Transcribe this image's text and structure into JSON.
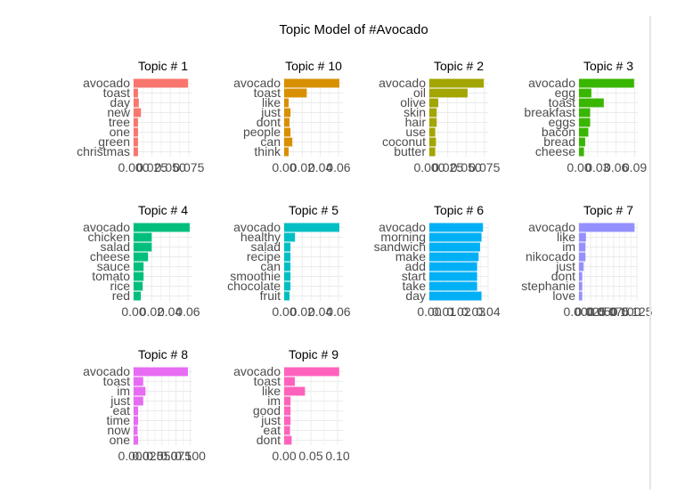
{
  "chart_data": {
    "type": "bar",
    "orientation": "horizontal",
    "title": "Topic Model of #Avocado",
    "grid": true,
    "legend": "none",
    "panels": [
      {
        "title": "Topic # 1",
        "color": "#F8766D",
        "categories": [
          "avocado",
          "toast",
          "day",
          "new",
          "tree",
          "one",
          "green",
          "christmas"
        ],
        "values": [
          0.074,
          0.006,
          0.007,
          0.01,
          0.006,
          0.006,
          0.006,
          0.006
        ],
        "xlim": [
          0,
          0.08
        ],
        "ticks": [
          0.0,
          0.025,
          0.05,
          0.075
        ],
        "tick_labels": [
          "0.000",
          "0.025",
          "0.050",
          "0.075"
        ]
      },
      {
        "title": "Topic # 10",
        "color": "#D89000",
        "categories": [
          "avocado",
          "toast",
          "like",
          "just",
          "dont",
          "people",
          "can",
          "think"
        ],
        "values": [
          0.061,
          0.025,
          0.005,
          0.007,
          0.006,
          0.007,
          0.009,
          0.005
        ],
        "xlim": [
          0,
          0.065
        ],
        "ticks": [
          0.0,
          0.02,
          0.04,
          0.06
        ],
        "tick_labels": [
          "0.00",
          "0.02",
          "0.04",
          "0.06"
        ]
      },
      {
        "title": "Topic # 2",
        "color": "#A3A500",
        "categories": [
          "avocado",
          "oil",
          "olive",
          "skin",
          "hair",
          "use",
          "coconut",
          "butter"
        ],
        "values": [
          0.074,
          0.052,
          0.012,
          0.01,
          0.01,
          0.008,
          0.009,
          0.008
        ],
        "xlim": [
          0,
          0.08
        ],
        "ticks": [
          0.0,
          0.025,
          0.05,
          0.075
        ],
        "tick_labels": [
          "0.000",
          "0.025",
          "0.050",
          "0.075"
        ]
      },
      {
        "title": "Topic # 3",
        "color": "#39B600",
        "categories": [
          "avocado",
          "egg",
          "toast",
          "breakfast",
          "eggs",
          "bacon",
          "bread",
          "cheese"
        ],
        "values": [
          0.089,
          0.02,
          0.04,
          0.018,
          0.018,
          0.015,
          0.01,
          0.008
        ],
        "xlim": [
          0,
          0.095
        ],
        "ticks": [
          0.0,
          0.03,
          0.06,
          0.09
        ],
        "tick_labels": [
          "0.00",
          "0.03",
          "0.06",
          "0.09"
        ]
      },
      {
        "title": "Topic # 4",
        "color": "#00BF7D",
        "categories": [
          "avocado",
          "chicken",
          "salad",
          "cheese",
          "sauce",
          "tomato",
          "rice",
          "red"
        ],
        "values": [
          0.062,
          0.02,
          0.02,
          0.016,
          0.011,
          0.011,
          0.01,
          0.008
        ],
        "xlim": [
          0,
          0.065
        ],
        "ticks": [
          0.0,
          0.02,
          0.04,
          0.06
        ],
        "tick_labels": [
          "0.00",
          "0.02",
          "0.04",
          "0.06"
        ]
      },
      {
        "title": "Topic # 5",
        "color": "#00BFC4",
        "categories": [
          "avocado",
          "healthy",
          "salad",
          "recipe",
          "can",
          "smoothie",
          "chocolate",
          "fruit"
        ],
        "values": [
          0.061,
          0.012,
          0.007,
          0.007,
          0.007,
          0.007,
          0.007,
          0.006
        ],
        "xlim": [
          0,
          0.065
        ],
        "ticks": [
          0.0,
          0.02,
          0.04,
          0.06
        ],
        "tick_labels": [
          "0.00",
          "0.02",
          "0.04",
          "0.06"
        ]
      },
      {
        "title": "Topic # 6",
        "color": "#00B0F6",
        "categories": [
          "avocado",
          "morning",
          "sandwich",
          "make",
          "add",
          "start",
          "take",
          "day"
        ],
        "values": [
          0.0365,
          0.0355,
          0.0345,
          0.0335,
          0.0325,
          0.0325,
          0.0325,
          0.0355
        ],
        "xlim": [
          0,
          0.04
        ],
        "ticks": [
          0.0,
          0.01,
          0.02,
          0.03,
          0.04
        ],
        "tick_labels": [
          "0.00",
          "0.01",
          "0.02",
          "0.03",
          "0.04"
        ]
      },
      {
        "title": "Topic # 7",
        "color": "#9590FF",
        "categories": [
          "avocado",
          "like",
          "im",
          "nikocado",
          "just",
          "dont",
          "stephanie",
          "love"
        ],
        "values": [
          0.12,
          0.015,
          0.014,
          0.014,
          0.01,
          0.007,
          0.007,
          0.007
        ],
        "xlim": [
          0,
          0.127
        ],
        "ticks": [
          0.0,
          0.025,
          0.05,
          0.075,
          0.1,
          0.125
        ],
        "tick_labels": [
          "0.000",
          "0.025",
          "0.050",
          "0.075",
          "0.100",
          "0.125"
        ]
      },
      {
        "title": "Topic # 8",
        "color": "#E76BF3",
        "categories": [
          "avocado",
          "toast",
          "im",
          "just",
          "eat",
          "time",
          "now",
          "one"
        ],
        "values": [
          0.096,
          0.017,
          0.021,
          0.017,
          0.008,
          0.008,
          0.007,
          0.008
        ],
        "xlim": [
          0,
          0.104
        ],
        "ticks": [
          0.0,
          0.025,
          0.05,
          0.075,
          0.1
        ],
        "tick_labels": [
          "0.000",
          "0.025",
          "0.050",
          "0.075",
          "0.100"
        ]
      },
      {
        "title": "Topic # 9",
        "color": "#FF62BC",
        "categories": [
          "avocado",
          "toast",
          "like",
          "im",
          "good",
          "just",
          "eat",
          "dont"
        ],
        "values": [
          0.103,
          0.02,
          0.039,
          0.012,
          0.012,
          0.012,
          0.011,
          0.014
        ],
        "xlim": [
          0,
          0.11
        ],
        "ticks": [
          0.0,
          0.05,
          0.1
        ],
        "tick_labels": [
          "0.00",
          "0.05",
          "0.10"
        ]
      }
    ]
  }
}
